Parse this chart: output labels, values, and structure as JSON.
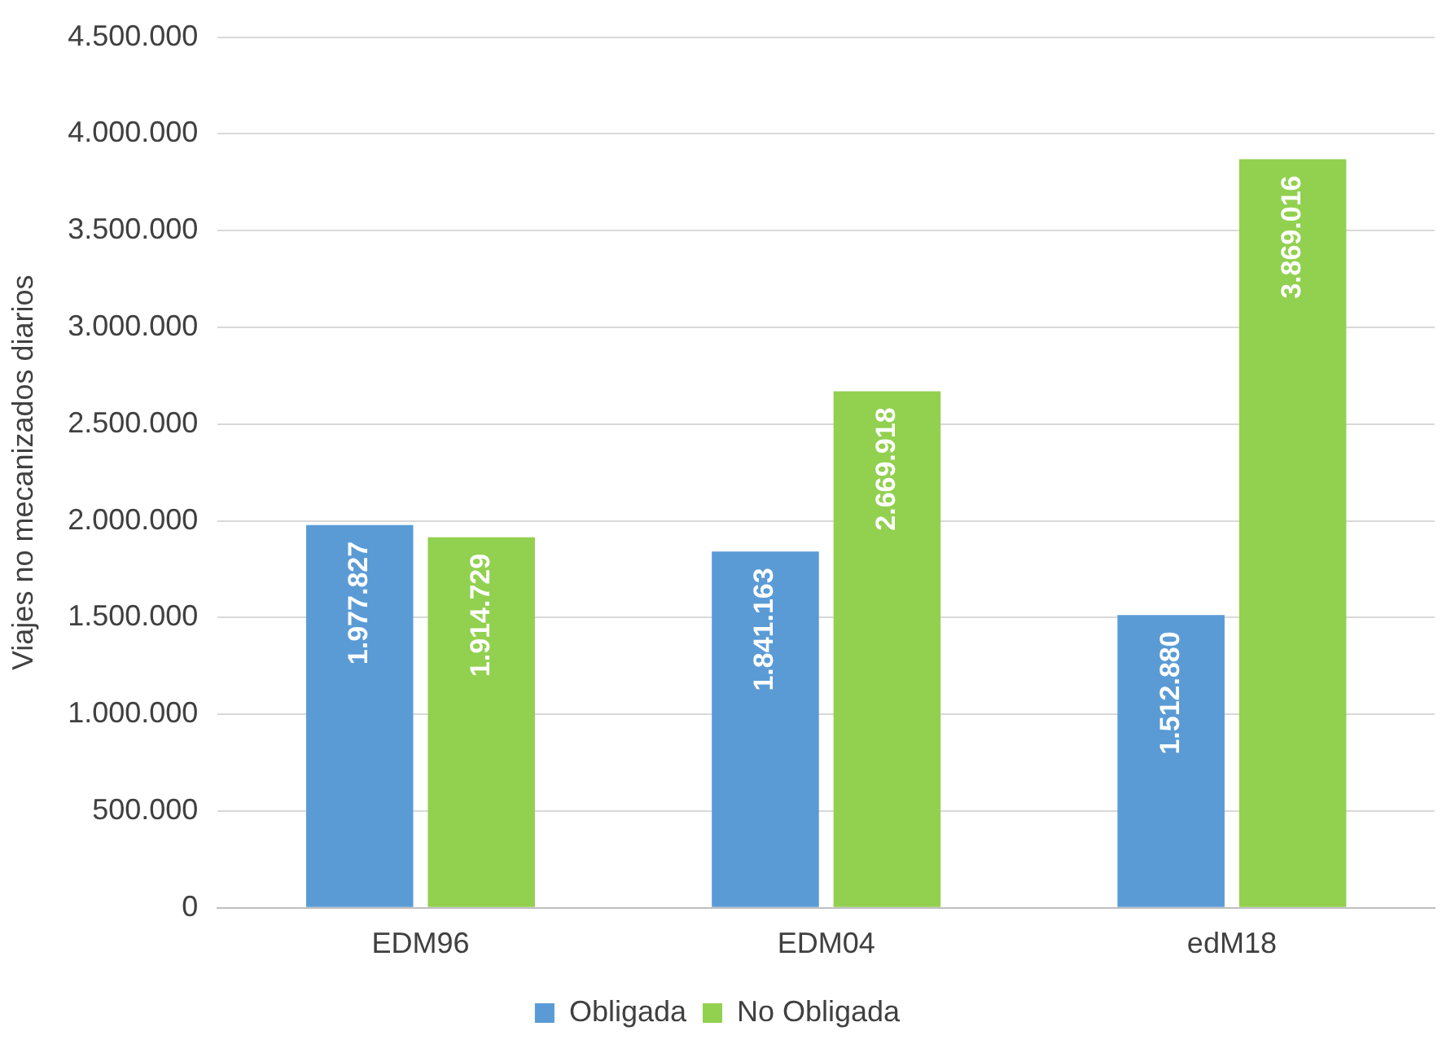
{
  "chart_data": {
    "type": "bar",
    "ylabel": "Viajes no mecanizados diarios",
    "categories": [
      "EDM96",
      "EDM04",
      "edM18"
    ],
    "series": [
      {
        "name": "Obligada",
        "color": "#5b9bd5",
        "values": [
          1977827,
          1841163,
          1512880
        ],
        "value_labels": [
          "1.977.827",
          "1.841.163",
          "1.512.880"
        ]
      },
      {
        "name": "No Obligada",
        "color": "#92d050",
        "values": [
          1914729,
          2669918,
          3869016
        ],
        "value_labels": [
          "1.914.729",
          "2.669.918",
          "3.869.016"
        ]
      }
    ],
    "ylim": [
      0,
      4500000
    ],
    "yticks": [
      {
        "value": 0,
        "label": "0"
      },
      {
        "value": 500000,
        "label": "500.000"
      },
      {
        "value": 1000000,
        "label": "1.000.000"
      },
      {
        "value": 1500000,
        "label": "1.500.000"
      },
      {
        "value": 2000000,
        "label": "2.000.000"
      },
      {
        "value": 2500000,
        "label": "2.500.000"
      },
      {
        "value": 3000000,
        "label": "3.000.000"
      },
      {
        "value": 3500000,
        "label": "3.500.000"
      },
      {
        "value": 4000000,
        "label": "4.000.000"
      },
      {
        "value": 4500000,
        "label": "4.500.000"
      }
    ],
    "grid": "y",
    "legend": "bottom"
  }
}
